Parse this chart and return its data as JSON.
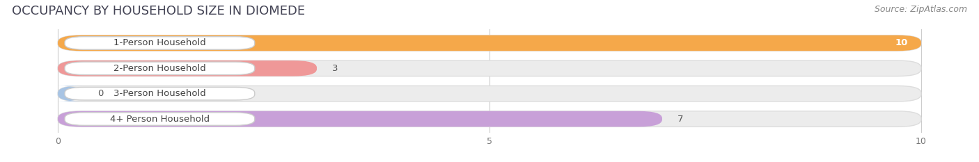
{
  "title": "OCCUPANCY BY HOUSEHOLD SIZE IN DIOMEDE",
  "source": "Source: ZipAtlas.com",
  "categories": [
    "1-Person Household",
    "2-Person Household",
    "3-Person Household",
    "4+ Person Household"
  ],
  "values": [
    10,
    3,
    0,
    7
  ],
  "bar_colors": [
    "#F5A84A",
    "#EF9898",
    "#A8C4E4",
    "#C8A0D8"
  ],
  "label_bg_colors": [
    "#FFFFFF",
    "#FFFFFF",
    "#FFFFFF",
    "#FFFFFF"
  ],
  "xlim": [
    0,
    10
  ],
  "xticks": [
    0,
    5,
    10
  ],
  "background_color": "#FFFFFF",
  "bar_bg_color": "#ECECEC",
  "title_fontsize": 13,
  "source_fontsize": 9,
  "label_fontsize": 9.5,
  "value_fontsize": 9.5
}
